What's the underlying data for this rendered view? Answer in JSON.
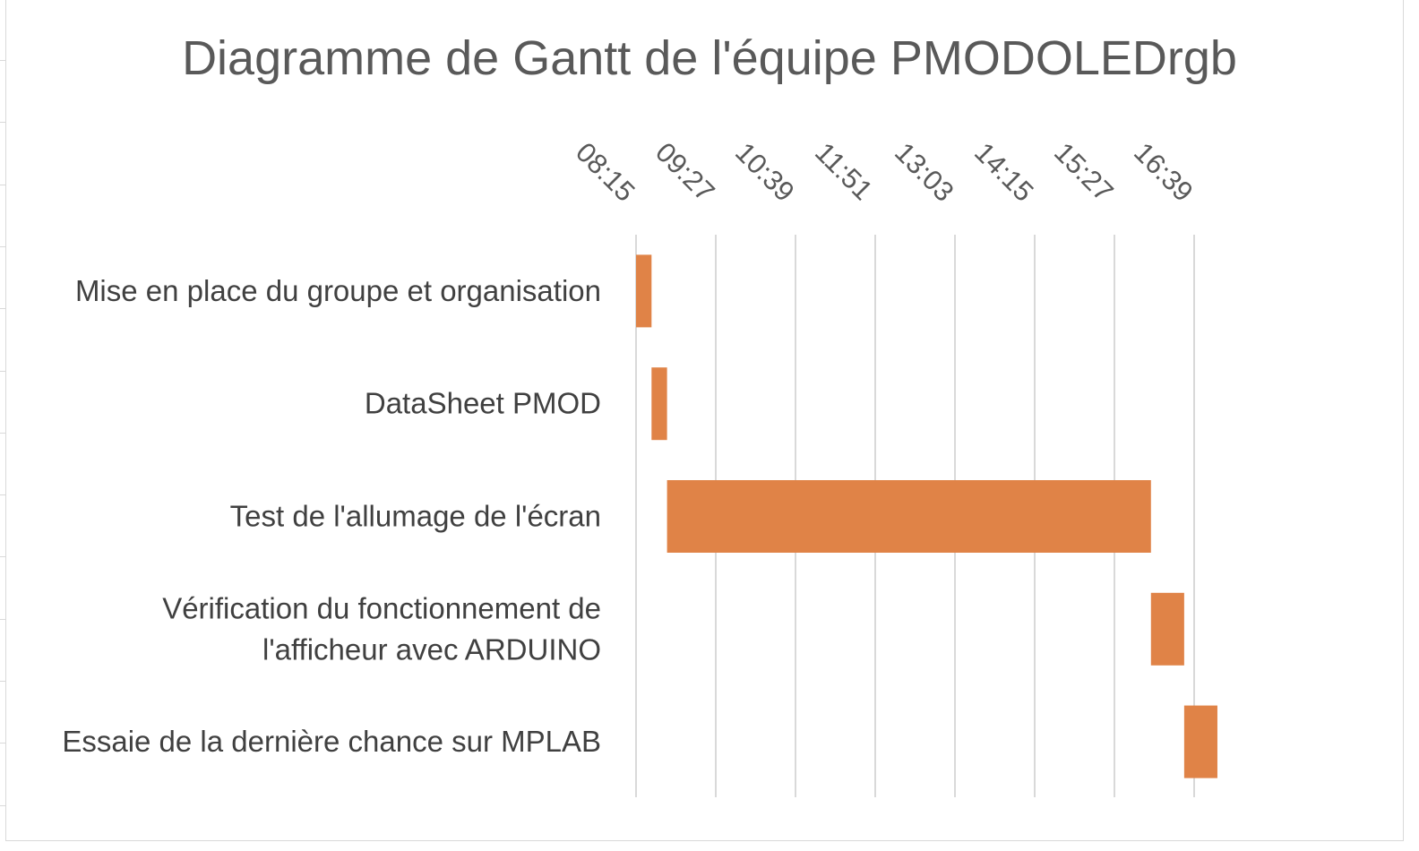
{
  "chart_data": {
    "type": "bar",
    "orientation": "horizontal",
    "title": "Diagramme de Gantt de l'équipe PMODOLEDrgb",
    "xlabel": "",
    "ylabel": "",
    "x_axis": {
      "position": "top",
      "tick_labels": [
        "08:15",
        "09:27",
        "10:39",
        "11:51",
        "13:03",
        "14:15",
        "15:27",
        "16:39"
      ],
      "range": [
        "08:15",
        "17:51"
      ],
      "gridlines": true
    },
    "categories": [
      [
        "Mise en place du groupe et organisation"
      ],
      [
        "DataSheet PMOD"
      ],
      [
        "Test de l'allumage de l'écran"
      ],
      [
        "Vérification du fonctionnement de",
        "l'afficheur avec ARDUINO"
      ],
      [
        "Essaie de la dernière chance sur MPLAB"
      ]
    ],
    "series": [
      {
        "start": [
          "08:15",
          "08:29",
          "08:43",
          "16:00",
          "16:30"
        ],
        "end": [
          "08:29",
          "08:43",
          "16:00",
          "16:30",
          "17:00"
        ],
        "color": "#E08347"
      }
    ],
    "legend": "none"
  },
  "colors": {
    "bar": "#E08347",
    "grid": "#d9d9d9",
    "title": "#595959",
    "label": "#404040"
  }
}
